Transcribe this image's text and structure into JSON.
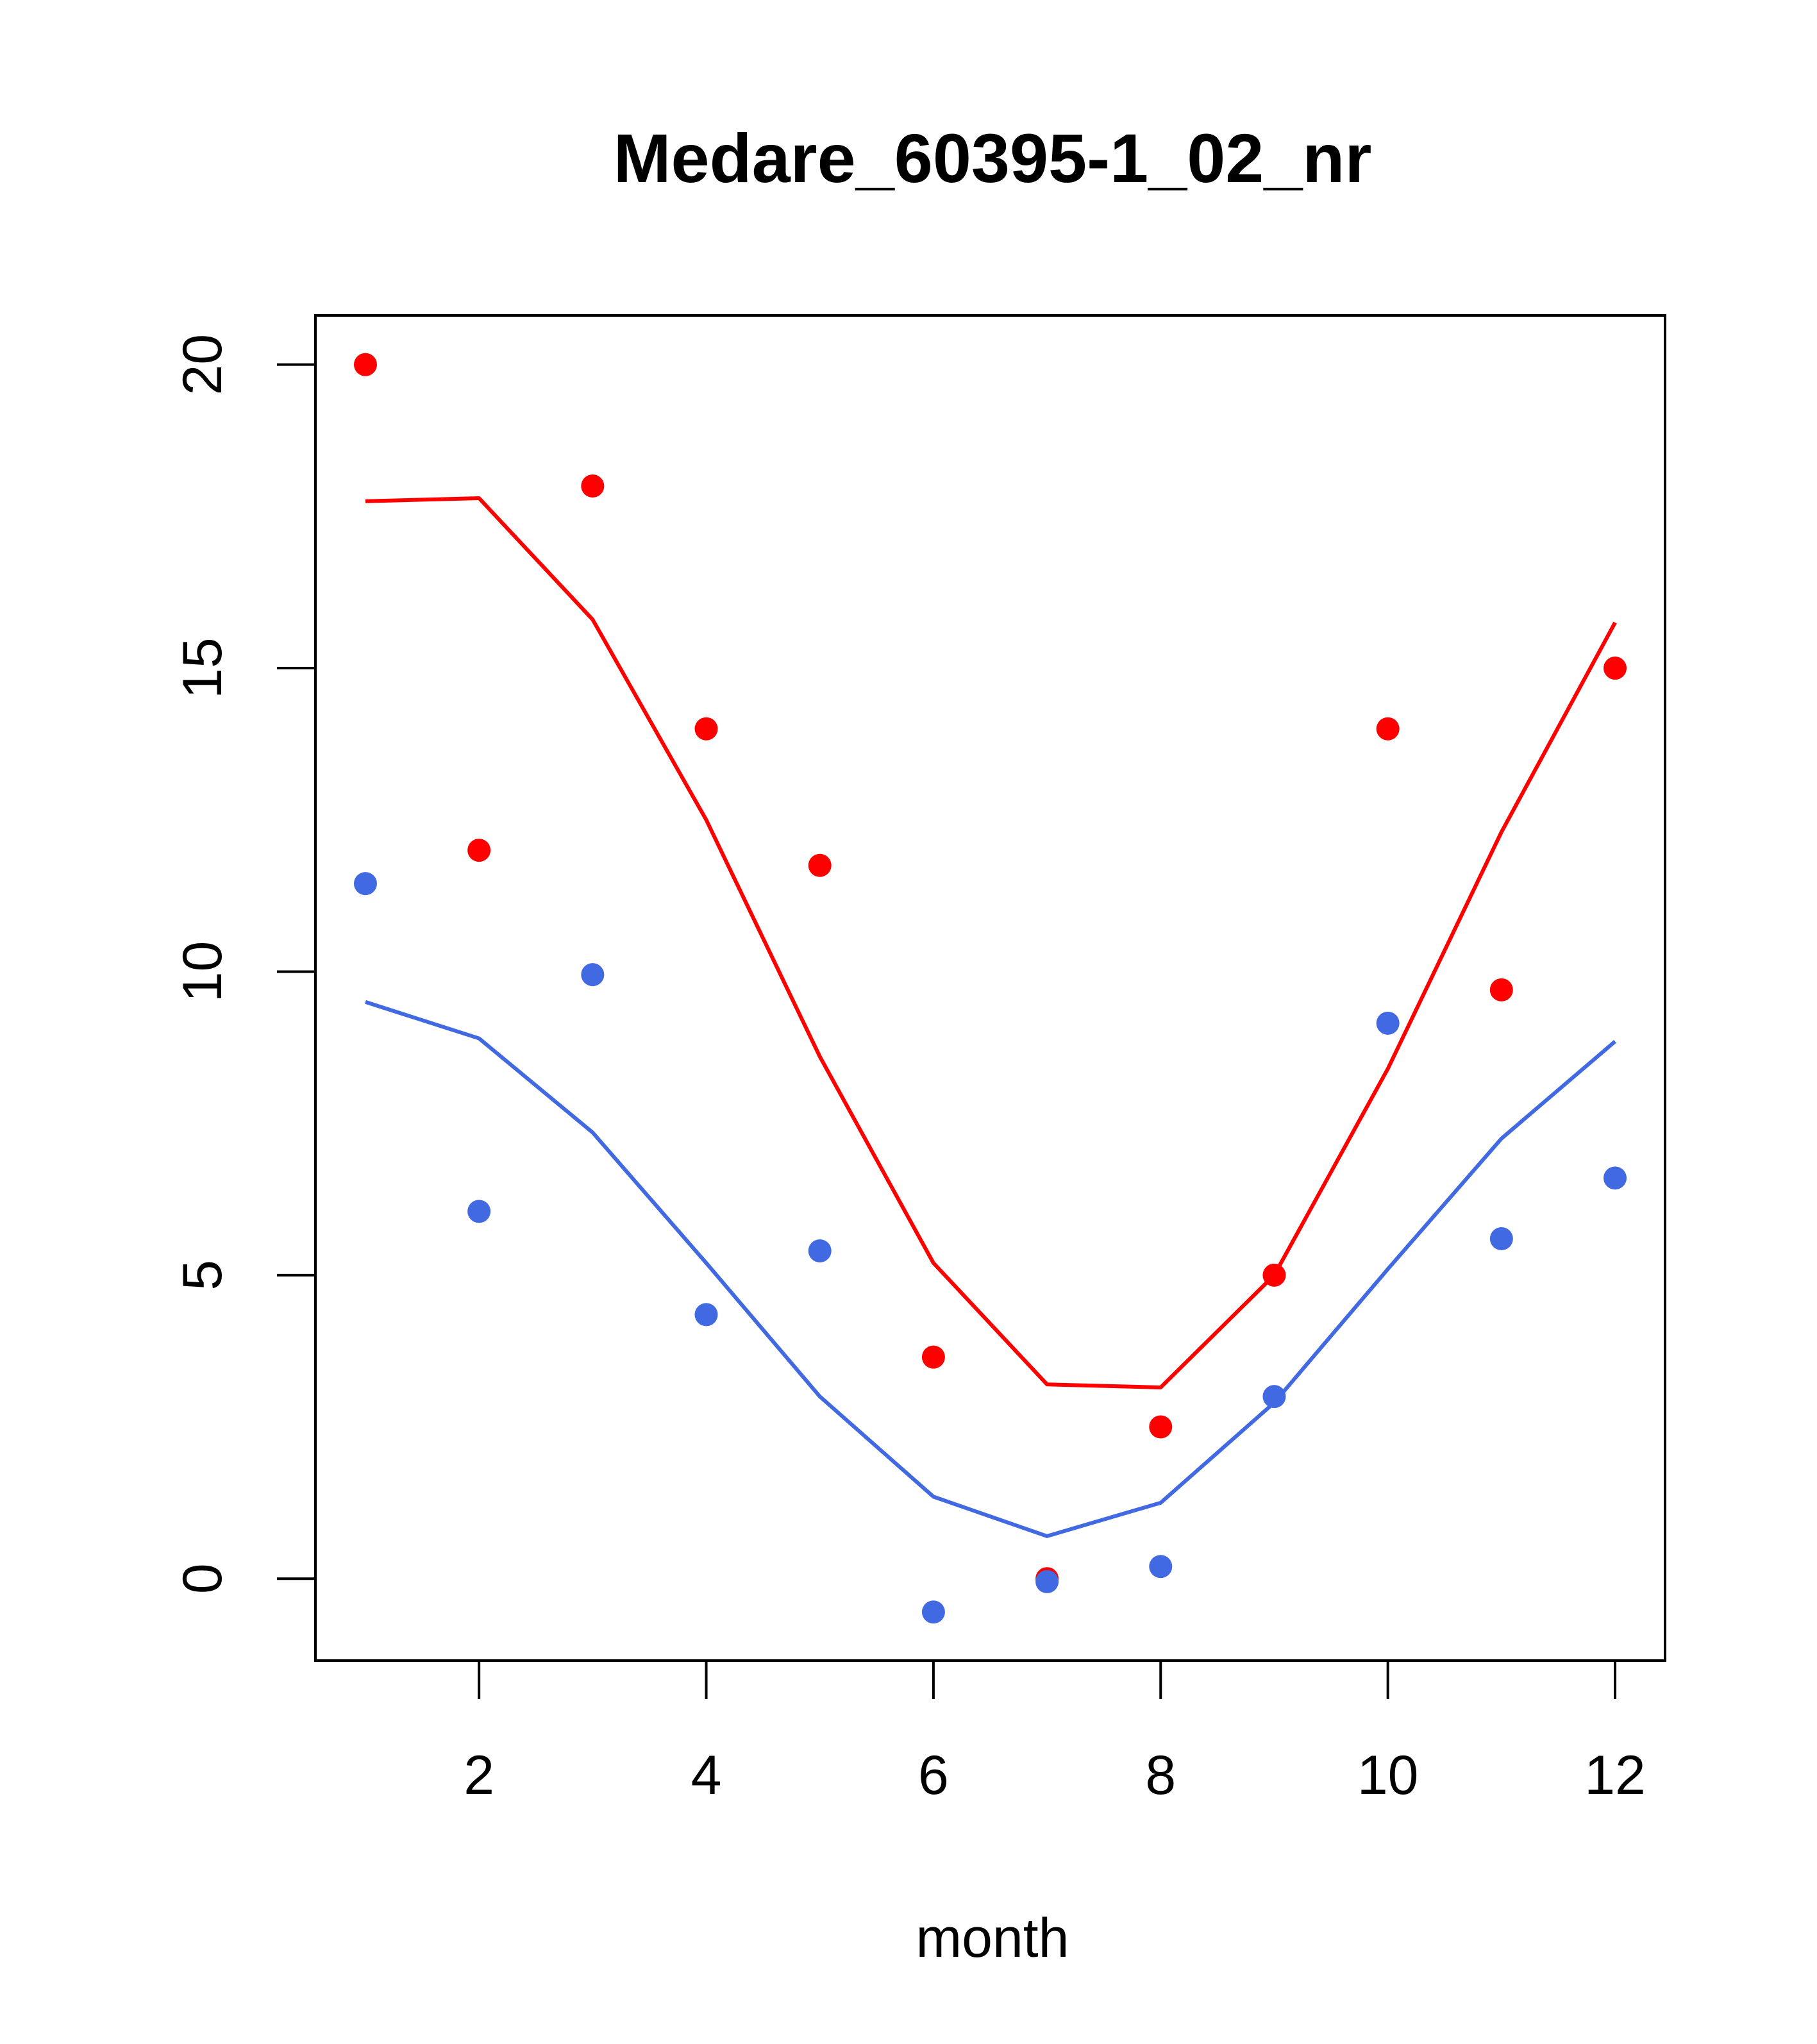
{
  "chart_data": {
    "type": "line",
    "title": "Medare_60395-1_02_nr",
    "xlabel": "month",
    "ylabel": "",
    "xlim": [
      0.56,
      12.44
    ],
    "ylim": [
      -1.35,
      20.81
    ],
    "x_ticks": [
      "2",
      "4",
      "6",
      "8",
      "10",
      "12"
    ],
    "y_ticks": [
      "0",
      "5",
      "10",
      "15",
      "20"
    ],
    "grid": false,
    "x": [
      1,
      2,
      3,
      4,
      5,
      6,
      7,
      8,
      9,
      10,
      11,
      12
    ],
    "series": [
      {
        "name": "red-line",
        "color": "#ff0000",
        "points": [
          20.0,
          12.0,
          18.0,
          14.0,
          11.75,
          3.65,
          0.0,
          2.5,
          5.0,
          14.0,
          9.7,
          15.0
        ],
        "line": [
          17.75,
          17.8,
          15.8,
          12.5,
          8.6,
          5.2,
          3.2,
          3.15,
          5.0,
          8.4,
          12.3,
          15.75
        ]
      },
      {
        "name": "blue-line",
        "color": "#4169e1",
        "points": [
          11.45,
          6.05,
          9.95,
          4.35,
          5.4,
          -0.55,
          -0.05,
          0.2,
          3.0,
          9.15,
          5.6,
          6.6
        ],
        "line": [
          9.5,
          8.9,
          7.35,
          5.2,
          3.0,
          1.35,
          0.7,
          1.25,
          2.9,
          5.1,
          7.25,
          8.85
        ]
      }
    ]
  }
}
